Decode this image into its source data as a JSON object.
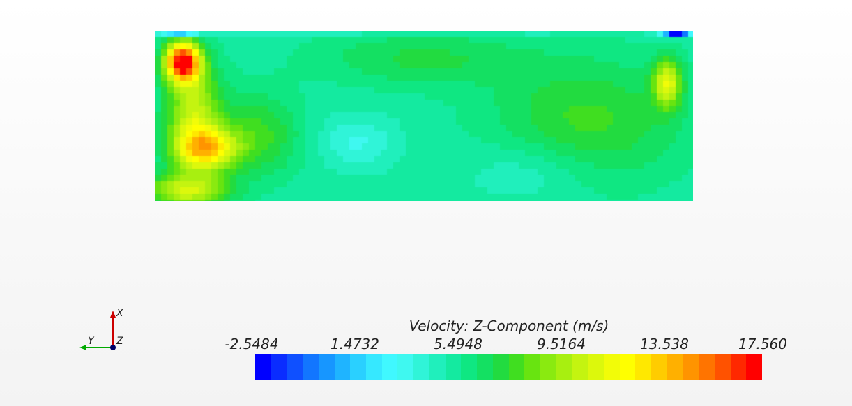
{
  "triad": {
    "x_label": "X",
    "y_label": "Y",
    "z_label": "Z",
    "colors": {
      "x": "#cc0000",
      "y": "#00aa00",
      "z": "#000066"
    }
  },
  "legend": {
    "title": "Velocity: Z-Component (m/s)",
    "ticks": [
      "-2.5484",
      "1.4732",
      "5.4948",
      "9.5164",
      "13.538",
      "17.560"
    ],
    "range": [
      -2.5484,
      17.56
    ],
    "bands": 32,
    "colors": [
      "#0000ff",
      "#0a2cff",
      "#0f50ff",
      "#1276ff",
      "#1796ff",
      "#1fb4ff",
      "#2ad0ff",
      "#36e8ff",
      "#40f8ff",
      "#3ff8f0",
      "#30f4d8",
      "#20efbc",
      "#14eaa0",
      "#0fe782",
      "#14e062",
      "#22db40",
      "#40de20",
      "#68e410",
      "#8aea10",
      "#a8ef10",
      "#c4f410",
      "#dcf80c",
      "#f2fc08",
      "#ffff00",
      "#ffe800",
      "#ffcc00",
      "#ffb000",
      "#ff9400",
      "#ff7400",
      "#ff5200",
      "#ff2800",
      "#ff0000"
    ]
  }
}
